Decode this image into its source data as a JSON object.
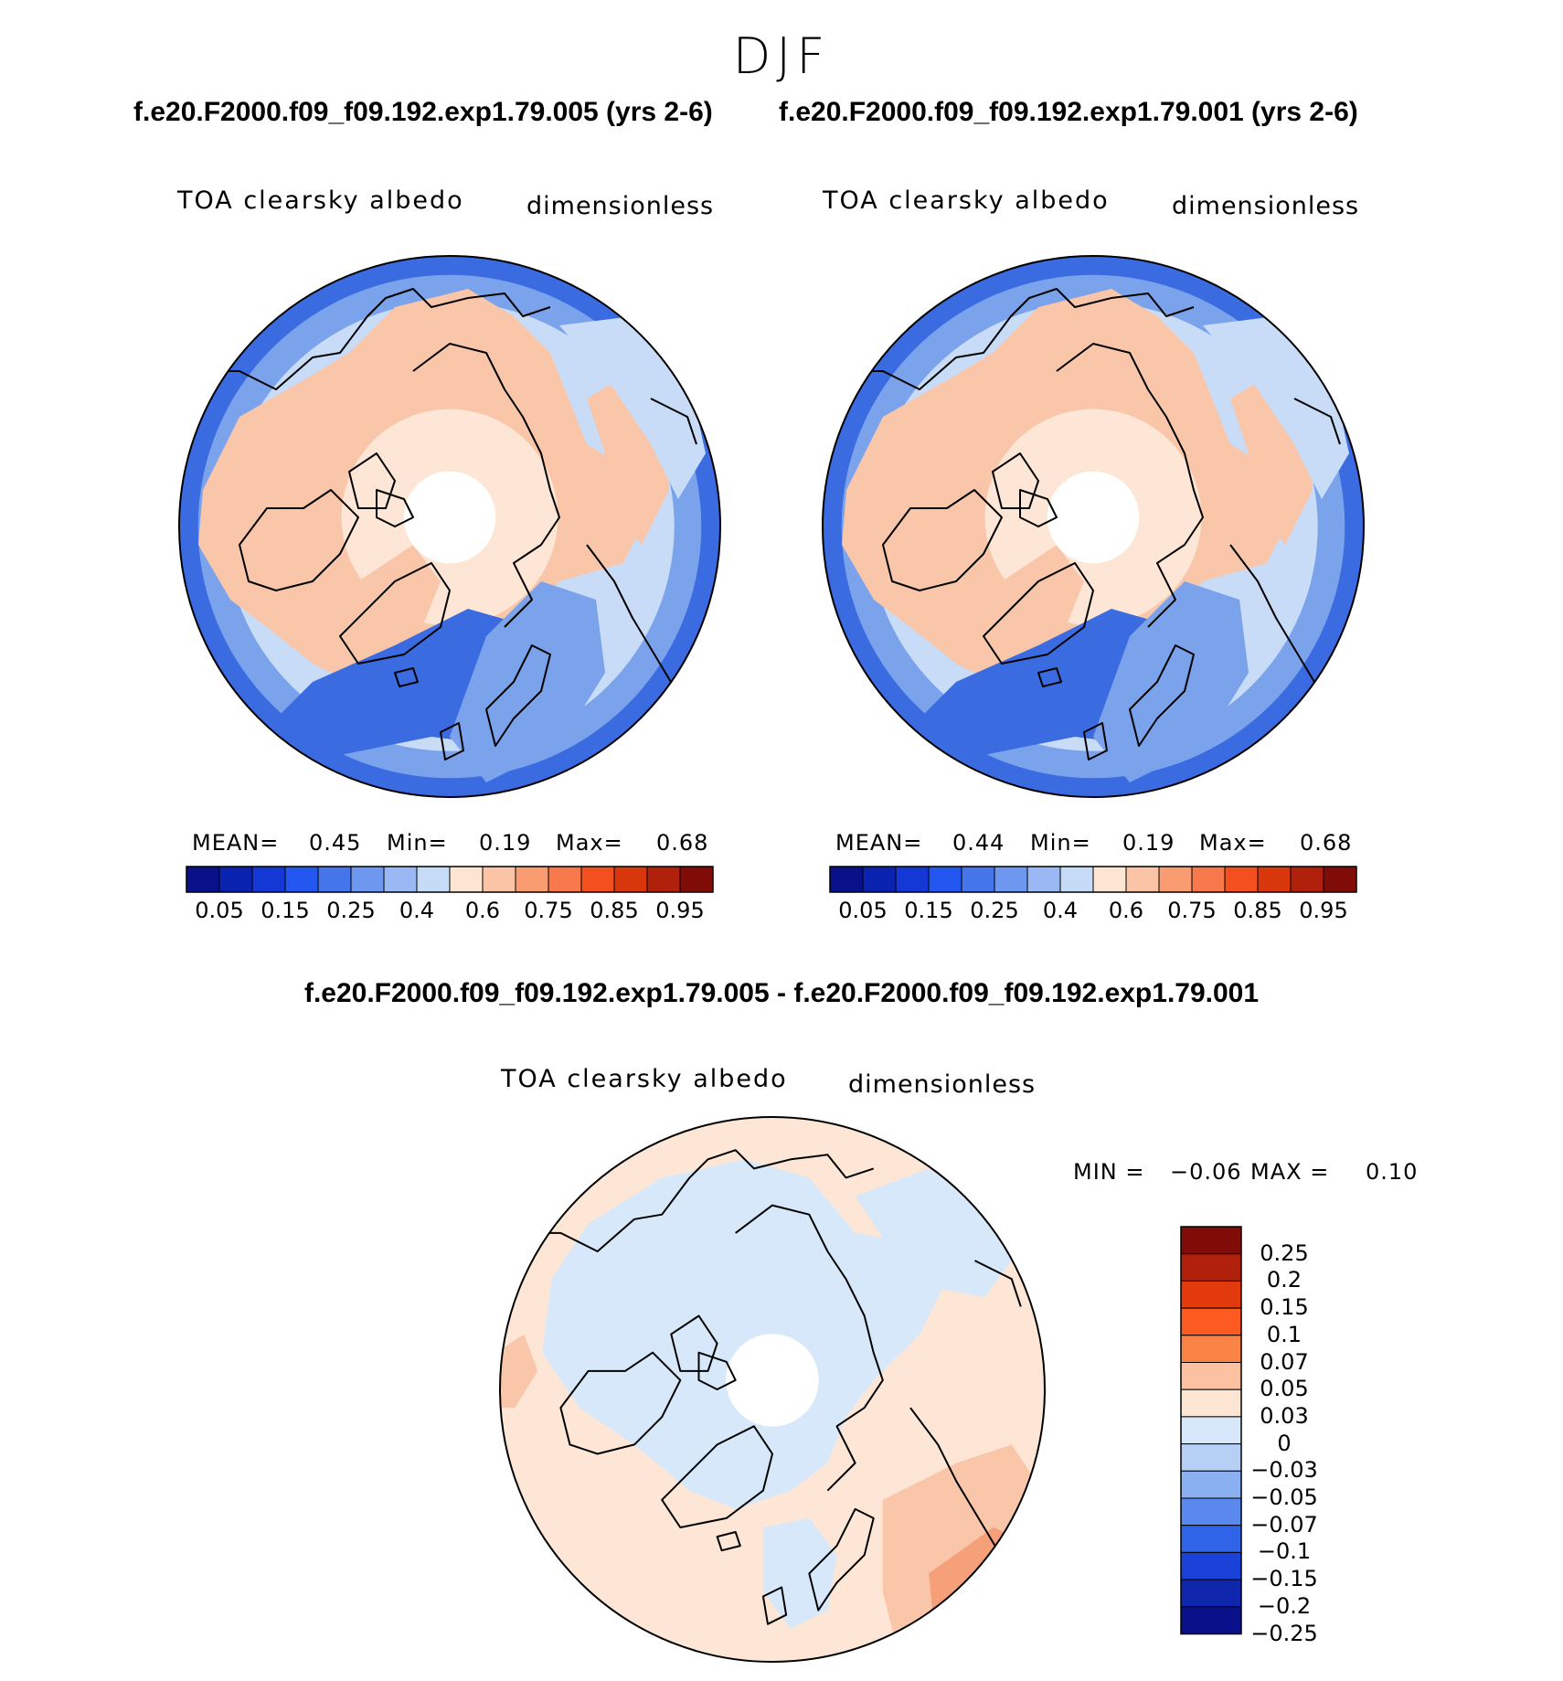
{
  "figure": {
    "season": "DJF",
    "case1_title": "f.e20.F2000.f09_f09.192.exp1.79.005 (yrs 2-6)",
    "case2_title": "f.e20.F2000.f09_f09.192.exp1.79.001 (yrs 2-6)",
    "diff_title": "f.e20.F2000.f09_f09.192.exp1.79.005 - f.e20.F2000.f09_f09.192.exp1.79.001"
  },
  "colors": {
    "map_blue_dark": "#3a6be0",
    "map_blue_mid": "#7aa3ec",
    "map_blue_light": "#c8dcf7",
    "map_peach": "#f9c6aa",
    "map_cream": "#fde6d5",
    "coast": "#000000"
  },
  "chart_data": [
    {
      "type": "heatmap",
      "projection": "north-polar-stereographic",
      "title": "f.e20.F2000.f09_f09.192.exp1.79.005 (yrs 2-6)",
      "variable": "TOA clearsky albedo",
      "units": "dimensionless",
      "stats": {
        "mean_label": "MEAN=",
        "mean": "0.45",
        "min_label": "Min=",
        "min": "0.19",
        "max_label": "Max=",
        "max": "0.68"
      },
      "levels": [
        0.05,
        0.1,
        0.15,
        0.2,
        0.25,
        0.3,
        0.35,
        0.4,
        0.5,
        0.6,
        0.65,
        0.7,
        0.75,
        0.8,
        0.85,
        0.9,
        0.95
      ],
      "tick_labels": [
        "0.05",
        "0.15",
        "0.25",
        "0.4",
        "0.6",
        "0.75",
        "0.85",
        "0.95"
      ]
    },
    {
      "type": "heatmap",
      "projection": "north-polar-stereographic",
      "title": "f.e20.F2000.f09_f09.192.exp1.79.001 (yrs 2-6)",
      "variable": "TOA clearsky albedo",
      "units": "dimensionless",
      "stats": {
        "mean_label": "MEAN=",
        "mean": "0.44",
        "min_label": "Min=",
        "min": "0.19",
        "max_label": "Max=",
        "max": "0.68"
      },
      "levels": [
        0.05,
        0.1,
        0.15,
        0.2,
        0.25,
        0.3,
        0.35,
        0.4,
        0.5,
        0.6,
        0.65,
        0.7,
        0.75,
        0.8,
        0.85,
        0.9,
        0.95
      ],
      "tick_labels": [
        "0.05",
        "0.15",
        "0.25",
        "0.4",
        "0.6",
        "0.75",
        "0.85",
        "0.95"
      ]
    },
    {
      "type": "heatmap",
      "projection": "north-polar-stereographic",
      "title": "f.e20.F2000.f09_f09.192.exp1.79.005 - f.e20.F2000.f09_f09.192.exp1.79.001",
      "variable": "TOA clearsky albedo",
      "units": "dimensionless",
      "stats": {
        "min_label": "MIN =",
        "min": "−0.06",
        "max_label": "MAX =",
        "max": "0.10"
      },
      "levels": [
        0.25,
        0.2,
        0.15,
        0.1,
        0.07,
        0.05,
        0.03,
        0,
        -0.03,
        -0.05,
        -0.07,
        -0.1,
        -0.15,
        -0.2,
        -0.25
      ],
      "tick_labels": [
        "0.25",
        "0.2",
        "0.15",
        "0.1",
        "0.07",
        "0.05",
        "0.03",
        "0",
        "−0.03",
        "−0.05",
        "−0.07",
        "−0.1",
        "−0.15",
        "−0.2",
        "−0.25"
      ]
    }
  ],
  "colorbars": {
    "horizontal": [
      "#08108a",
      "#0a22b0",
      "#1338d6",
      "#2457ef",
      "#4575ea",
      "#6e98f0",
      "#9ab8f4",
      "#c6dbf6",
      "#fde5d3",
      "#fbc4a6",
      "#f99c72",
      "#f7784a",
      "#f2501f",
      "#d8360b",
      "#b0200a",
      "#800c07"
    ],
    "vertical": [
      "#800c07",
      "#b0200a",
      "#e33a0d",
      "#fb5a20",
      "#f98446",
      "#fbc1a0",
      "#fde5d3",
      "#d7e8fa",
      "#b5cff5",
      "#8ab0f2",
      "#5a88ec",
      "#2f63e8",
      "#1b42d8",
      "#0f27ad",
      "#08108a"
    ]
  }
}
